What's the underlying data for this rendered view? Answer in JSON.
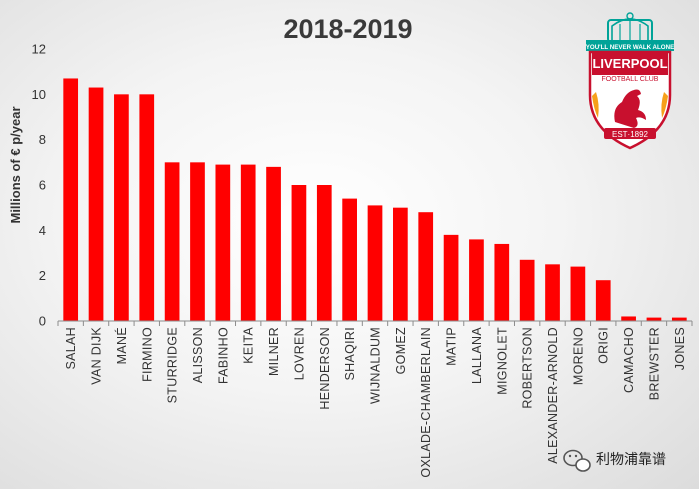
{
  "chart_data": {
    "type": "bar",
    "title": "2018-2019",
    "xlabel": "",
    "ylabel": "Millions of € p/year",
    "ylim": [
      0,
      12
    ],
    "yticks": [
      "0",
      "2",
      "4",
      "6",
      "8",
      "10",
      "12"
    ],
    "grid": false,
    "bar_color": "#ff0000",
    "categories": [
      "SALAH",
      "VAN DIJK",
      "MANÉ",
      "FIRMINO",
      "STURRIDGE",
      "ALISSON",
      "FABINHO",
      "KEITA",
      "MILNER",
      "LOVREN",
      "HENDERSON",
      "SHAQIRI",
      "WIJNALDUM",
      "GOMEZ",
      "OXLADE-CHAMBERLAIN",
      "MATIP",
      "LALLANA",
      "MIGNOLET",
      "ROBERTSON",
      "ALEXANDER-ARNOLD",
      "MORENO",
      "ORIGI",
      "CAMACHO",
      "BREWSTER",
      "JONES"
    ],
    "values": [
      10.7,
      10.3,
      10.0,
      10.0,
      7.0,
      7.0,
      6.9,
      6.9,
      6.8,
      6.0,
      6.0,
      5.4,
      5.1,
      5.0,
      4.8,
      3.8,
      3.6,
      3.4,
      2.7,
      2.5,
      2.4,
      1.8,
      0.2,
      0.15,
      0.15
    ]
  },
  "logo": {
    "motto": "YOU'LL NEVER WALK ALONE",
    "name": "LIVERPOOL",
    "subname": "FOOTBALL CLUB",
    "est": "EST·1892",
    "primary_color": "#c8102e",
    "accent_color": "#00a398"
  },
  "watermark": {
    "text": "利物浦靠谱",
    "icon": "wechat-icon"
  }
}
